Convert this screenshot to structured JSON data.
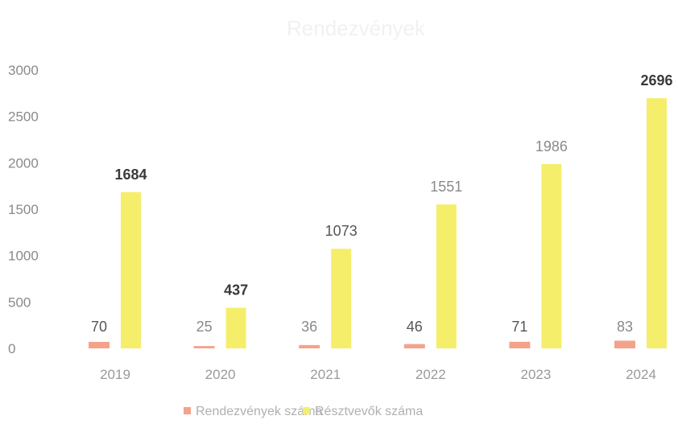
{
  "chart_data": {
    "type": "bar",
    "title": "Rendezvények",
    "categories": [
      "2019",
      "2020",
      "2021",
      "2022",
      "2023",
      "2024"
    ],
    "series": [
      {
        "name": "Rendezvények száma",
        "values": [
          70,
          25,
          36,
          46,
          71,
          83
        ],
        "color": "#f4a38a"
      },
      {
        "name": "Résztvevők száma",
        "values": [
          1684,
          437,
          1073,
          1551,
          1986,
          2696
        ],
        "color": "#f5ee6a"
      }
    ],
    "yticks": [
      "0",
      "500",
      "1000",
      "1500",
      "2000",
      "2500",
      "3000"
    ],
    "ylim": [
      0,
      3000
    ],
    "grid": false,
    "legend": "bottom"
  }
}
